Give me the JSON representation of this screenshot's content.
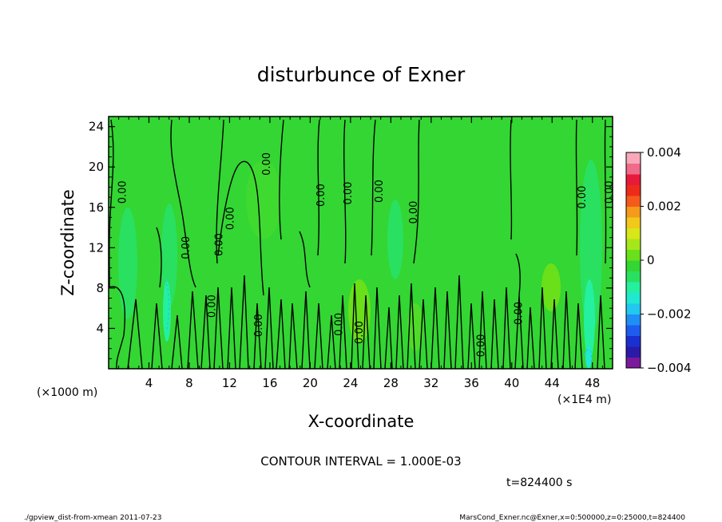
{
  "chart_data": {
    "type": "heatmap",
    "title": "disturbunce of Exner",
    "xlabel": "X-coordinate",
    "ylabel": "Z-coordinate",
    "x_unit": "(×1E4 m)",
    "y_unit": "(×1000 m)",
    "x_ticks": [
      4,
      8,
      12,
      16,
      20,
      24,
      28,
      32,
      36,
      40,
      44,
      48
    ],
    "y_ticks": [
      4,
      8,
      12,
      16,
      20,
      24
    ],
    "xlim": [
      0,
      50
    ],
    "ylim": [
      0,
      25
    ],
    "colorbar": {
      "ticks": [
        {
          "value": 0.004,
          "label": "0.004"
        },
        {
          "value": 0.002,
          "label": "0.002"
        },
        {
          "value": 0,
          "label": "0"
        },
        {
          "value": -0.002,
          "label": "−0.002"
        },
        {
          "value": -0.004,
          "label": "−0.004"
        }
      ],
      "range": [
        -0.004,
        0.004
      ],
      "colors": [
        "#7a1a9a",
        "#2a1aa8",
        "#1a2fd0",
        "#1e5cf0",
        "#1f8ff5",
        "#22c8f0",
        "#22e8d2",
        "#25f0a0",
        "#2ae060",
        "#33d633",
        "#6ae01a",
        "#a6e61a",
        "#d8e61a",
        "#f2c81a",
        "#f59a1a",
        "#f55a1a",
        "#ee2a1a",
        "#e81a3a",
        "#f06a8a",
        "#f8a8b8"
      ]
    },
    "background_value": 0,
    "contour_labels": [
      {
        "x": 1.3,
        "y": 17.5,
        "text": "0.00"
      },
      {
        "x": 7.6,
        "y": 12.0,
        "text": "0.00"
      },
      {
        "x": 10.2,
        "y": 6.2,
        "text": "0.00"
      },
      {
        "x": 10.9,
        "y": 12.3,
        "text": "0.00"
      },
      {
        "x": 12.0,
        "y": 14.9,
        "text": "0.00"
      },
      {
        "x": 14.8,
        "y": 4.3,
        "text": "0.00"
      },
      {
        "x": 15.6,
        "y": 20.3,
        "text": "0.00"
      },
      {
        "x": 21.0,
        "y": 17.2,
        "text": "0.00"
      },
      {
        "x": 22.8,
        "y": 4.4,
        "text": "0.00"
      },
      {
        "x": 23.7,
        "y": 17.4,
        "text": "0.00"
      },
      {
        "x": 24.8,
        "y": 3.6,
        "text": "0.00"
      },
      {
        "x": 26.8,
        "y": 17.6,
        "text": "0.00"
      },
      {
        "x": 30.2,
        "y": 15.5,
        "text": "0.00"
      },
      {
        "x": 36.9,
        "y": 2.3,
        "text": "0.00"
      },
      {
        "x": 40.6,
        "y": 5.5,
        "text": "0.00"
      },
      {
        "x": 46.9,
        "y": 17.0,
        "text": "0.00"
      },
      {
        "x": 49.6,
        "y": 17.5,
        "text": "0.00"
      }
    ],
    "contour_interval": "CONTOUR INTERVAL = 1.000E-03"
  },
  "time_label": "t=824400 s",
  "footer_left": "./gpview_dist-from-xmean   2011-07-23",
  "footer_right": "MarsCond_Exner.nc@Exner,x=0:500000,z=0:25000,t=824400"
}
